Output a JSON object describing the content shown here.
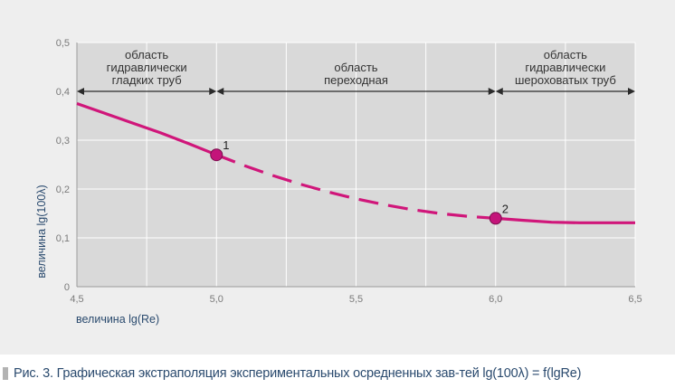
{
  "chart_data": {
    "type": "line",
    "xlabel": "величина lg(Re)",
    "ylabel": "величина lg(100λ)",
    "xlim": [
      4.5,
      6.5
    ],
    "ylim": [
      0,
      0.5
    ],
    "x_ticks": [
      "4,5",
      "5,0",
      "5,5",
      "6,0",
      "6,5"
    ],
    "y_ticks": [
      "0",
      "0,1",
      "0,2",
      "0,3",
      "0,4",
      "0,5"
    ],
    "grid": true,
    "line_color": "#d0167a",
    "series": [
      {
        "style": "solid",
        "points": [
          [
            4.5,
            0.375
          ],
          [
            4.6,
            0.355
          ],
          [
            4.7,
            0.335
          ],
          [
            4.8,
            0.315
          ],
          [
            4.9,
            0.293
          ],
          [
            5.0,
            0.27
          ]
        ]
      },
      {
        "style": "dashed",
        "points": [
          [
            5.0,
            0.27
          ],
          [
            5.1,
            0.248
          ],
          [
            5.2,
            0.228
          ],
          [
            5.3,
            0.21
          ],
          [
            5.4,
            0.194
          ],
          [
            5.5,
            0.18
          ],
          [
            5.6,
            0.168
          ],
          [
            5.7,
            0.158
          ],
          [
            5.8,
            0.15
          ],
          [
            5.9,
            0.144
          ],
          [
            6.0,
            0.14
          ]
        ]
      },
      {
        "style": "solid",
        "points": [
          [
            6.0,
            0.14
          ],
          [
            6.1,
            0.136
          ],
          [
            6.2,
            0.132
          ],
          [
            6.3,
            0.131
          ],
          [
            6.4,
            0.131
          ],
          [
            6.5,
            0.131
          ]
        ]
      }
    ],
    "marked_points": [
      {
        "label": "1",
        "x": 5.0,
        "y": 0.27
      },
      {
        "label": "2",
        "x": 6.0,
        "y": 0.14
      }
    ],
    "regions": [
      {
        "from": 4.5,
        "to": 5.0,
        "lines": [
          "область",
          "гидравлически",
          "гладких труб"
        ]
      },
      {
        "from": 5.0,
        "to": 6.0,
        "lines": [
          "область",
          "переходная"
        ]
      },
      {
        "from": 6.0,
        "to": 6.5,
        "lines": [
          "область",
          "гидравлически",
          "шероховатых труб"
        ]
      }
    ],
    "region_arrow_y": 0.4
  },
  "caption": {
    "text": "Рис. 3. Графическая экстраполяция экспериментальных осредненных зав-тей lg(100λ) = f(lgRe)"
  }
}
